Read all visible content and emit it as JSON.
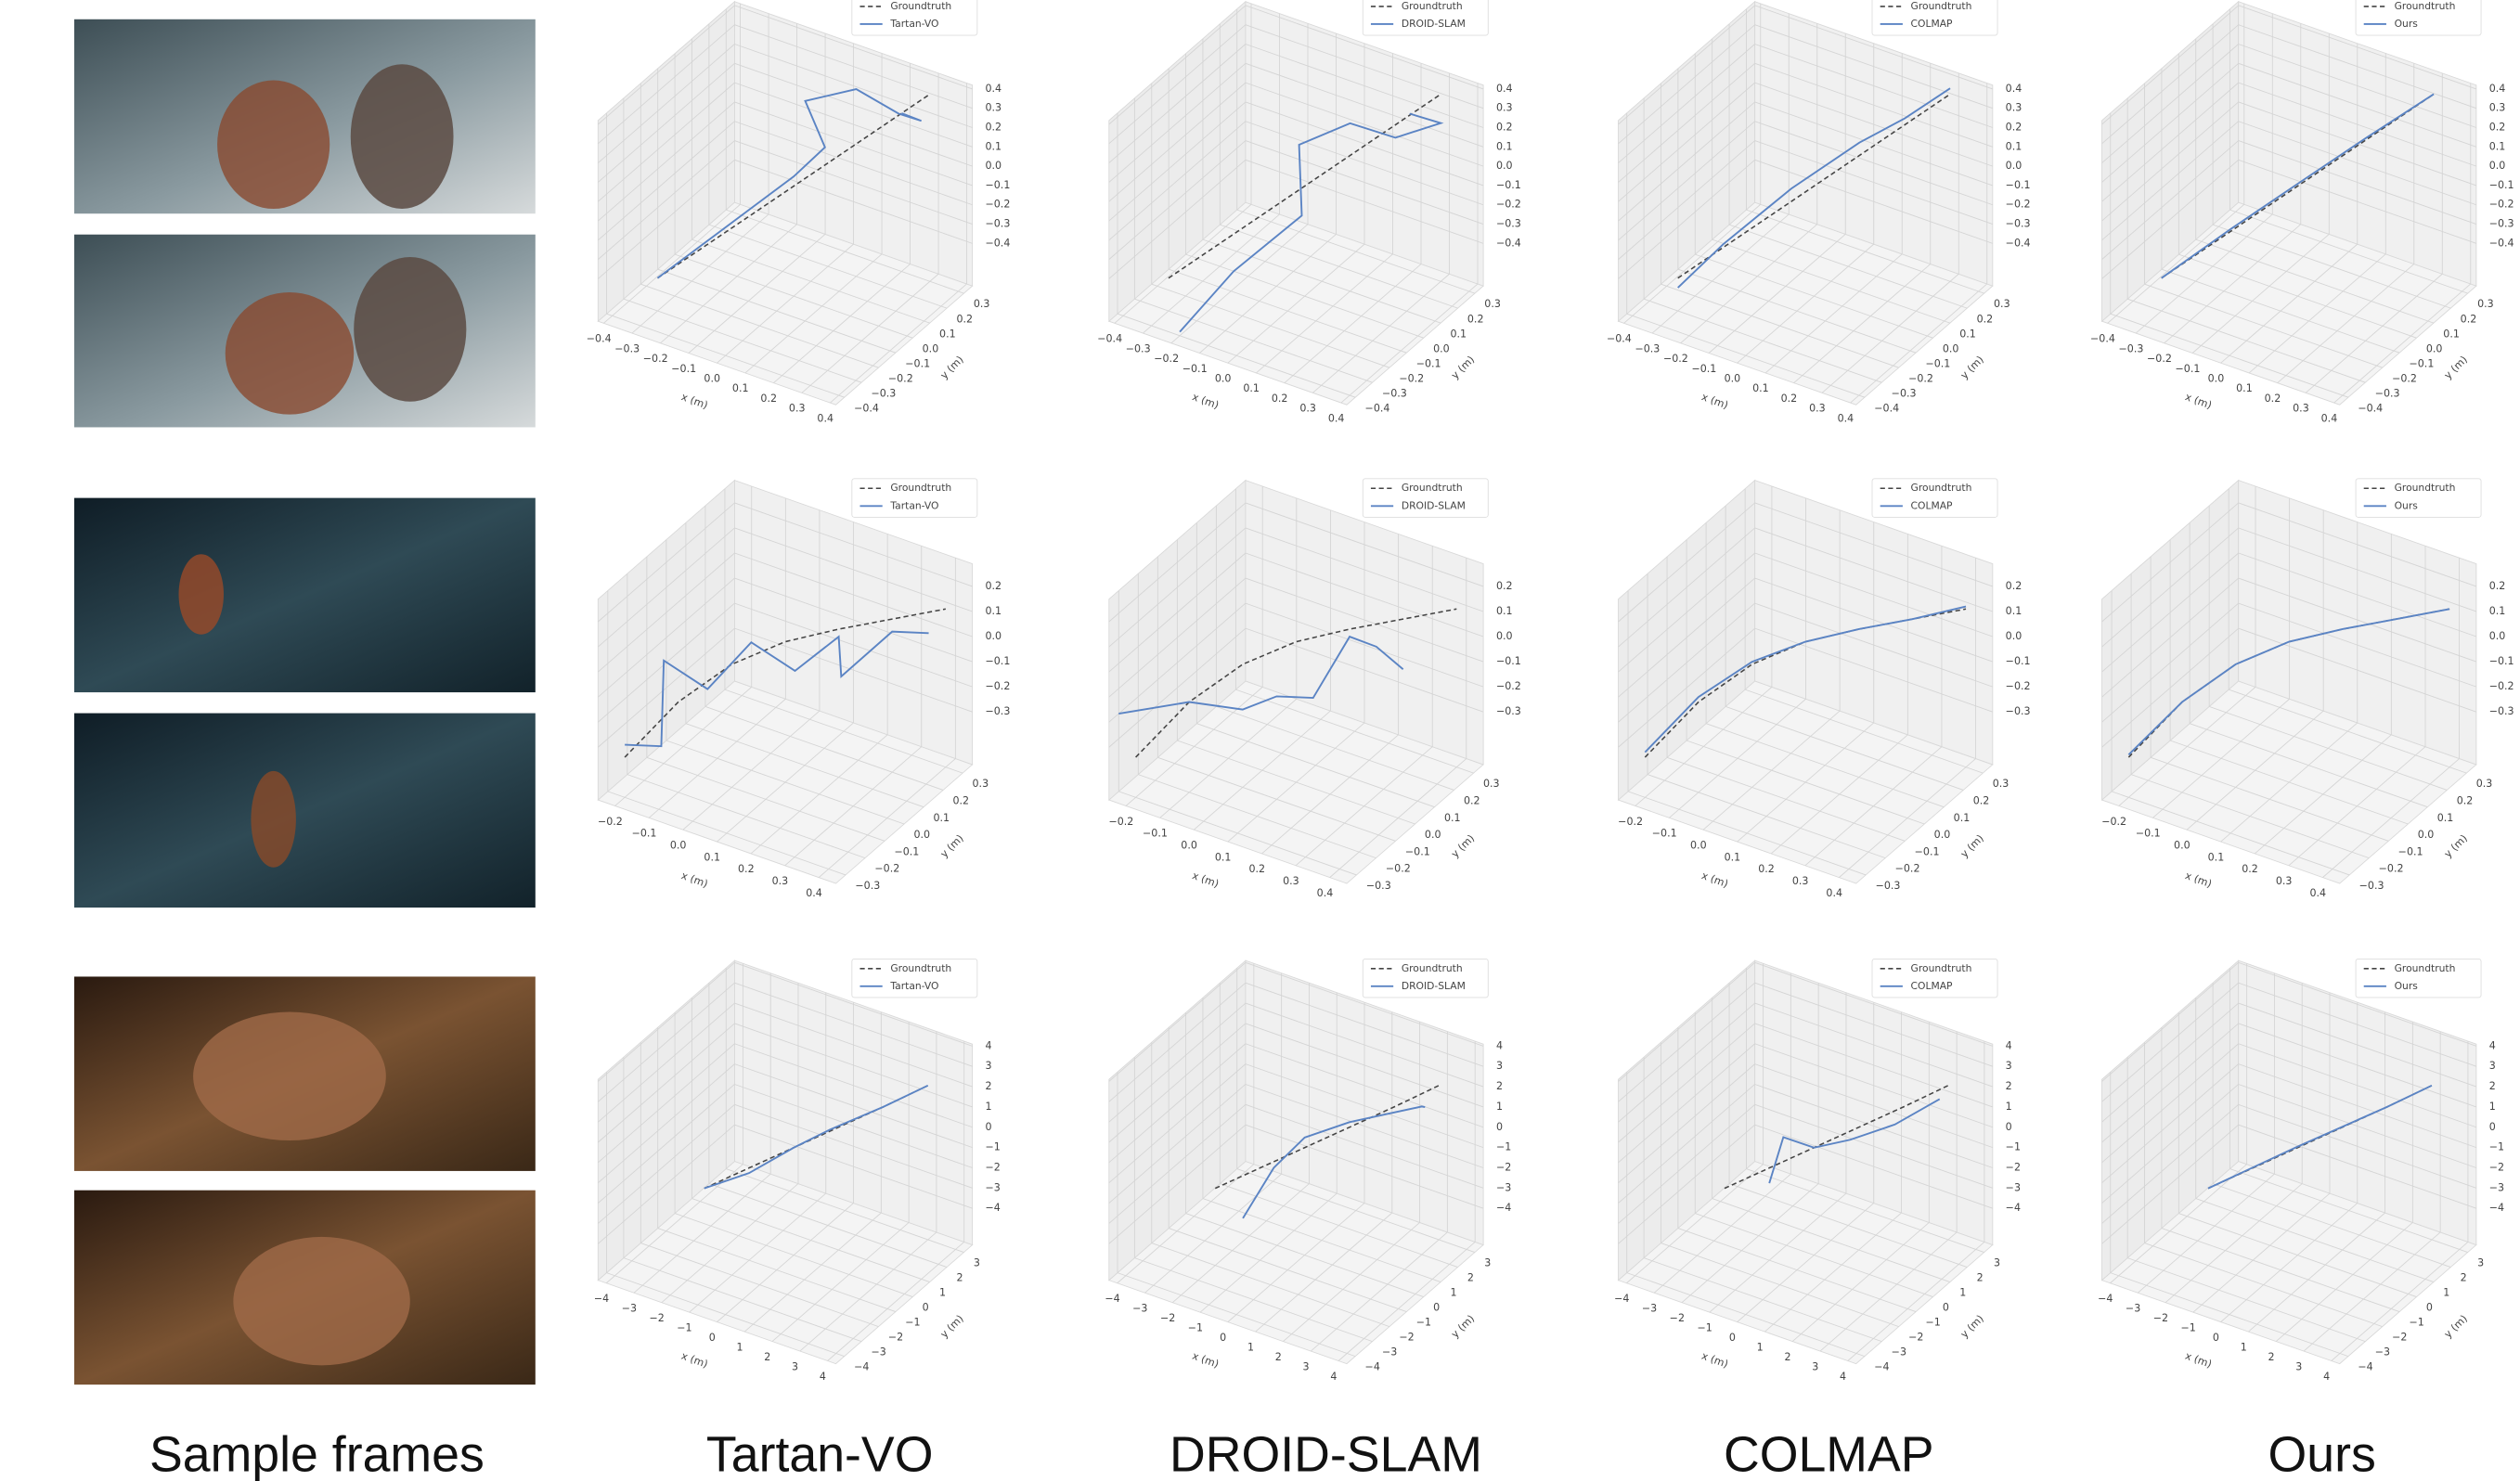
{
  "columns": [
    "Sample frames",
    "Tartan-VO",
    "DROID-SLAM",
    "COLMAP",
    "Ours"
  ],
  "legend_groundtruth": "Groundtruth",
  "x_label": "x (m)",
  "y_label": "y (m)",
  "rows": [
    {
      "xlim": [
        -0.42,
        0.42
      ],
      "ylim": [
        -0.45,
        0.35
      ],
      "zlim": [
        -0.62,
        0.42
      ],
      "xticks": [
        {
          "value": -0.4,
          "label": "−0.4"
        },
        {
          "value": -0.3,
          "label": "−0.3"
        },
        {
          "value": -0.2,
          "label": "−0.2"
        },
        {
          "value": -0.1,
          "label": "−0.1"
        },
        {
          "value": 0,
          "label": "0.0"
        },
        0.1,
        0.2,
        0.3,
        0.4
      ],
      "yticks": [
        {
          "value": -0.4,
          "label": "−0.4"
        },
        {
          "value": -0.3,
          "label": "−0.3"
        },
        {
          "value": -0.2,
          "label": "−0.2"
        },
        {
          "value": -0.1,
          "label": "−0.1"
        },
        {
          "value": 0,
          "label": "0.0"
        },
        0.1,
        0.2,
        0.3
      ],
      "zticks": [
        {
          "value": -0.4,
          "label": "−0.4"
        },
        {
          "value": -0.3,
          "label": "−0.3"
        },
        {
          "value": -0.2,
          "label": "−0.2"
        },
        {
          "value": -0.1,
          "label": "−0.1"
        },
        {
          "value": 0,
          "label": "0.0"
        },
        0.1,
        0.2,
        0.3,
        0.4
      ],
      "groundtruth": {
        "x": [
          -0.3,
          -0.15,
          0,
          0.15,
          0.3
        ],
        "y": [
          -0.3,
          -0.15,
          0,
          0.15,
          0.3
        ],
        "z": [
          -0.45,
          -0.25,
          -0.05,
          0.15,
          0.35
        ]
      },
      "methods": [
        {
          "x": [
            -0.3,
            -0.2,
            -0.1,
            0,
            0.05,
            -0.05,
            0.1,
            0.25,
            0.3,
            0.2
          ],
          "y": [
            -0.3,
            -0.2,
            -0.1,
            0,
            0.1,
            0.15,
            0.2,
            0.2,
            0.25,
            0.3
          ],
          "z": [
            -0.45,
            -0.3,
            -0.15,
            0,
            0.1,
            0.25,
            0.35,
            0.3,
            0.25,
            0.2
          ]
        },
        {
          "x": [
            -0.2,
            -0.1,
            0.05,
            -0.05,
            0.1,
            0.2,
            0.3,
            0.25
          ],
          "y": [
            -0.4,
            -0.25,
            -0.1,
            0.05,
            0.1,
            0.2,
            0.3,
            0.2
          ],
          "z": [
            -0.6,
            -0.35,
            -0.1,
            0.1,
            0.25,
            0.15,
            0.2,
            0.3
          ]
        },
        {
          "x": [
            -0.3,
            -0.2,
            -0.05,
            0.1,
            0.2,
            0.3
          ],
          "y": [
            -0.3,
            -0.2,
            -0.05,
            0.1,
            0.2,
            0.3
          ],
          "z": [
            -0.5,
            -0.3,
            -0.05,
            0.15,
            0.25,
            0.38
          ]
        },
        {
          "x": [
            -0.3,
            -0.15,
            0,
            0.15,
            0.3
          ],
          "y": [
            -0.3,
            -0.14,
            0.01,
            0.15,
            0.3
          ],
          "z": [
            -0.45,
            -0.24,
            -0.04,
            0.16,
            0.35
          ]
        }
      ]
    },
    {
      "xlim": [
        -0.25,
        0.45
      ],
      "ylim": [
        -0.35,
        0.35
      ],
      "zlim": [
        -0.51,
        0.29
      ],
      "xticks": [
        {
          "value": -0.2,
          "label": "−0.2"
        },
        {
          "value": -0.1,
          "label": "−0.1"
        },
        {
          "value": 0,
          "label": "0.0"
        },
        0.1,
        0.2,
        0.3,
        0.4
      ],
      "yticks": [
        {
          "value": -0.3,
          "label": "−0.3"
        },
        {
          "value": -0.2,
          "label": "−0.2"
        },
        {
          "value": -0.1,
          "label": "−0.1"
        },
        {
          "value": 0,
          "label": "0.0"
        },
        0.1,
        0.2,
        0.3
      ],
      "zticks": [
        {
          "value": -0.3,
          "label": "−0.3"
        },
        {
          "value": -0.2,
          "label": "−0.2"
        },
        {
          "value": -0.1,
          "label": "−0.1"
        },
        {
          "value": 0,
          "label": "0.0"
        },
        0.1,
        0.2
      ],
      "groundtruth": {
        "x": [
          -0.2,
          -0.1,
          0,
          0.1,
          0.2,
          0.3,
          0.4
        ],
        "y": [
          -0.3,
          -0.2,
          -0.1,
          0,
          0.1,
          0.2,
          0.3
        ],
        "z": [
          -0.35,
          -0.15,
          -0.02,
          0.05,
          0.08,
          0.1,
          0.12
        ]
      },
      "methods": [
        {
          "x": [
            -0.2,
            -0.15,
            -0.2,
            -0.1,
            0,
            0.1,
            0.2,
            0.15,
            0.3,
            0.35
          ],
          "y": [
            -0.3,
            -0.2,
            -0.1,
            -0.05,
            0,
            0.05,
            0.1,
            0.2,
            0.2,
            0.3
          ],
          "z": [
            -0.3,
            -0.35,
            -0.1,
            -0.2,
            0,
            -0.1,
            0.05,
            -0.2,
            0.05,
            0
          ]
        },
        {
          "x": [
            -0.25,
            -0.1,
            0,
            0.1,
            0.15,
            0.2,
            0.25,
            0.3
          ],
          "y": [
            -0.3,
            -0.2,
            -0.1,
            -0.1,
            0,
            0.1,
            0.15,
            0.2
          ],
          "z": [
            -0.2,
            -0.15,
            -0.2,
            -0.1,
            -0.15,
            0.05,
            0,
            -0.1
          ]
        },
        {
          "x": [
            -0.2,
            -0.1,
            0,
            0.1,
            0.2,
            0.3,
            0.4
          ],
          "y": [
            -0.3,
            -0.2,
            -0.1,
            0,
            0.1,
            0.2,
            0.3
          ],
          "z": [
            -0.33,
            -0.13,
            -0.01,
            0.05,
            0.08,
            0.1,
            0.13
          ]
        },
        {
          "x": [
            -0.2,
            -0.1,
            0,
            0.1,
            0.2,
            0.3,
            0.4
          ],
          "y": [
            -0.3,
            -0.2,
            -0.1,
            0,
            0.1,
            0.2,
            0.3
          ],
          "z": [
            -0.34,
            -0.15,
            -0.02,
            0.05,
            0.08,
            0.1,
            0.12
          ]
        }
      ]
    },
    {
      "xlim": [
        -4.3,
        4.3
      ],
      "ylim": [
        -4.5,
        3.5
      ],
      "zlim": [
        -5.8,
        4.1
      ],
      "xticks": [
        {
          "value": -4,
          "label": "−4"
        },
        {
          "value": -3,
          "label": "−3"
        },
        {
          "value": -2,
          "label": "−2"
        },
        {
          "value": -1,
          "label": "−1"
        },
        0,
        1,
        2,
        3,
        4
      ],
      "yticks": [
        {
          "value": -4,
          "label": "−4"
        },
        {
          "value": -3,
          "label": "−3"
        },
        {
          "value": -2,
          "label": "−2"
        },
        {
          "value": -1,
          "label": "−1"
        },
        0,
        1,
        2,
        3
      ],
      "zticks": [
        {
          "value": -4,
          "label": "−4"
        },
        {
          "value": -3,
          "label": "−3"
        },
        {
          "value": -2,
          "label": "−2"
        },
        {
          "value": -1,
          "label": "−1"
        },
        0,
        1,
        2,
        3,
        4
      ],
      "groundtruth": {
        "x": [
          -2,
          0,
          2,
          3
        ],
        "y": [
          -2,
          0,
          2,
          3
        ],
        "z": [
          -2,
          -0.5,
          1,
          1.8
        ]
      },
      "methods": [
        {
          "x": [
            -2,
            -1,
            0,
            1,
            2,
            3
          ],
          "y": [
            -2,
            -1,
            0,
            0.5,
            2,
            3
          ],
          "z": [
            -2,
            -1.5,
            -0.5,
            0.5,
            1,
            1.8
          ]
        },
        {
          "x": [
            -1,
            -0.5,
            0,
            1,
            2,
            3,
            2.5
          ],
          "y": [
            -2,
            -1,
            0,
            1,
            1.5,
            2,
            3
          ],
          "z": [
            -3,
            -1,
            0,
            0.5,
            1,
            1.5,
            0.5
          ]
        },
        {
          "x": [
            -1,
            -0.8,
            0,
            1,
            2,
            3
          ],
          "y": [
            -1,
            -0.5,
            0,
            0.5,
            1.5,
            2.5
          ],
          "z": [
            -2,
            0,
            -0.5,
            0,
            0.5,
            1.5
          ]
        },
        {
          "x": [
            -2,
            0,
            2,
            3
          ],
          "y": [
            -2,
            0,
            2,
            3
          ],
          "z": [
            -2,
            -0.45,
            1,
            1.8
          ]
        }
      ]
    }
  ]
}
